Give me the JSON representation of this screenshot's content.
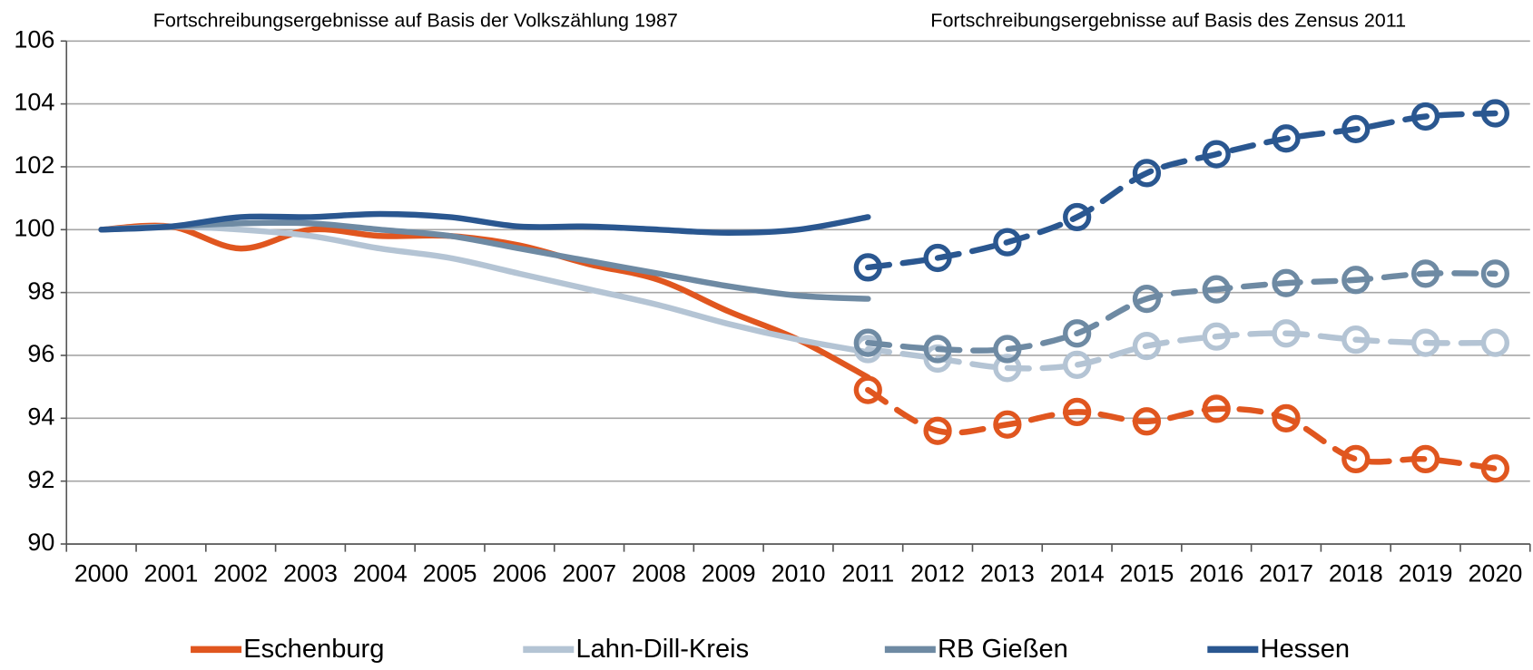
{
  "chart_data": {
    "type": "line",
    "annotations": [
      "Fortschreibungsergebnisse auf Basis der Volkszählung 1987",
      "Fortschreibungsergebnisse auf Basis des Zensus 2011"
    ],
    "categories": [
      "2000",
      "2001",
      "2002",
      "2003",
      "2004",
      "2005",
      "2006",
      "2007",
      "2008",
      "2009",
      "2010",
      "2011",
      "2012",
      "2013",
      "2014",
      "2015",
      "2016",
      "2017",
      "2018",
      "2019",
      "2020"
    ],
    "series": [
      {
        "name": "Eschenburg",
        "color": "#e0561f",
        "values": [
          100,
          100.1,
          99.4,
          100.0,
          99.8,
          99.8,
          99.5,
          98.9,
          98.4,
          97.4,
          96.5,
          95.3,
          null,
          null,
          null,
          null,
          null,
          null,
          null,
          null,
          null
        ],
        "census_values": [
          null,
          null,
          null,
          null,
          null,
          null,
          null,
          null,
          null,
          null,
          null,
          94.9,
          93.6,
          93.8,
          94.2,
          93.9,
          94.3,
          94.0,
          92.7,
          92.7,
          92.4
        ]
      },
      {
        "name": "Lahn-Dill-Kreis",
        "color": "#b4c4d4",
        "values": [
          100,
          100.1,
          100.0,
          99.8,
          99.4,
          99.1,
          98.6,
          98.1,
          97.6,
          97.0,
          96.5,
          96.1,
          null,
          null,
          null,
          null,
          null,
          null,
          null,
          null,
          null
        ],
        "census_values": [
          null,
          null,
          null,
          null,
          null,
          null,
          null,
          null,
          null,
          null,
          null,
          96.2,
          95.9,
          95.6,
          95.7,
          96.3,
          96.6,
          96.7,
          96.5,
          96.4,
          96.4
        ]
      },
      {
        "name": "RB Gießen",
        "color": "#6e8aa3",
        "values": [
          100,
          100.1,
          100.2,
          100.2,
          100.0,
          99.8,
          99.4,
          99.0,
          98.6,
          98.2,
          97.9,
          97.8,
          null,
          null,
          null,
          null,
          null,
          null,
          null,
          null,
          null
        ],
        "census_values": [
          null,
          null,
          null,
          null,
          null,
          null,
          null,
          null,
          null,
          null,
          null,
          96.4,
          96.2,
          96.2,
          96.7,
          97.8,
          98.1,
          98.3,
          98.4,
          98.6,
          98.6
        ]
      },
      {
        "name": "Hessen",
        "color": "#2a5790",
        "values": [
          100,
          100.1,
          100.4,
          100.4,
          100.5,
          100.4,
          100.1,
          100.1,
          100.0,
          99.9,
          100.0,
          100.4,
          null,
          null,
          null,
          null,
          null,
          null,
          null,
          null,
          null
        ],
        "census_values": [
          null,
          null,
          null,
          null,
          null,
          null,
          null,
          null,
          null,
          null,
          null,
          98.8,
          99.1,
          99.6,
          100.4,
          101.8,
          102.4,
          102.9,
          103.2,
          103.6,
          103.7
        ]
      }
    ],
    "ylim": [
      90,
      106
    ],
    "yticks": [
      90,
      92,
      94,
      96,
      98,
      100,
      102,
      104,
      106
    ],
    "grid": true,
    "legend": "bottom"
  }
}
